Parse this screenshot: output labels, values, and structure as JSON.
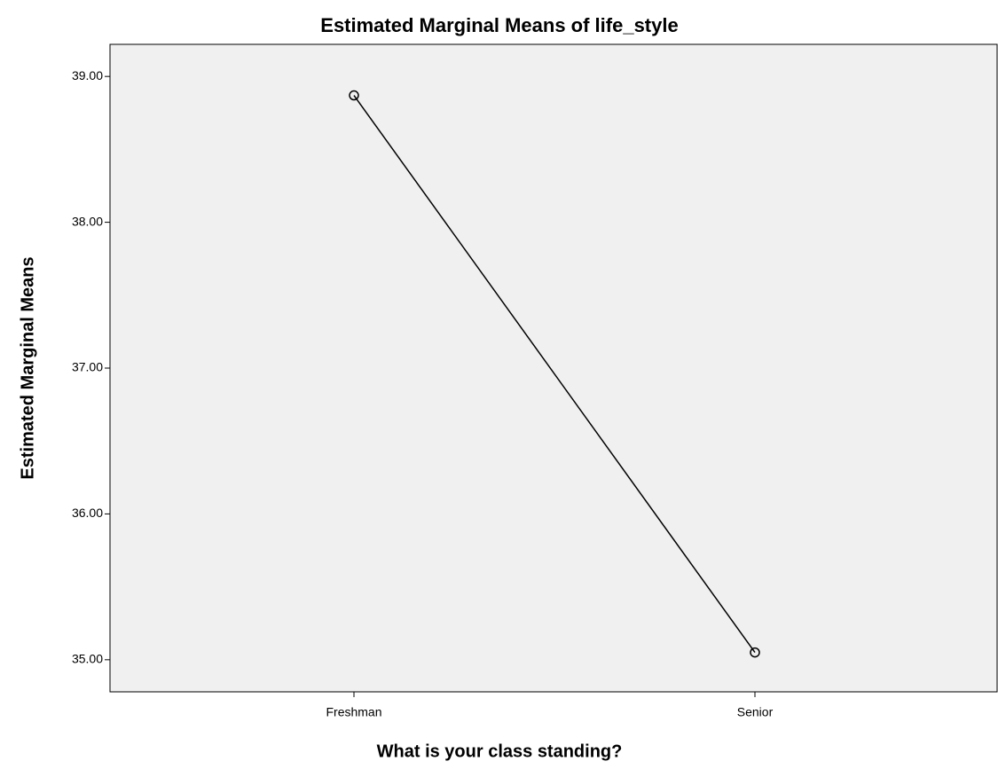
{
  "chart_data": {
    "type": "line",
    "title": "Estimated Marginal Means of life_style",
    "x_label": "What is your class standing?",
    "y_label": "Estimated Marginal Means",
    "categories": [
      "Freshman",
      "Senior"
    ],
    "series": [
      {
        "name": "life_style",
        "color": "#000000",
        "values": [
          38.87,
          35.05
        ]
      }
    ],
    "ylim": [
      34.78,
      39.22
    ],
    "yticks": [
      {
        "value": 35,
        "label": "35.00"
      },
      {
        "value": 36,
        "label": "36.00"
      },
      {
        "value": 37,
        "label": "37.00"
      },
      {
        "value": 38,
        "label": "38.00"
      },
      {
        "value": 39,
        "label": "39.00"
      }
    ],
    "grid": false
  }
}
